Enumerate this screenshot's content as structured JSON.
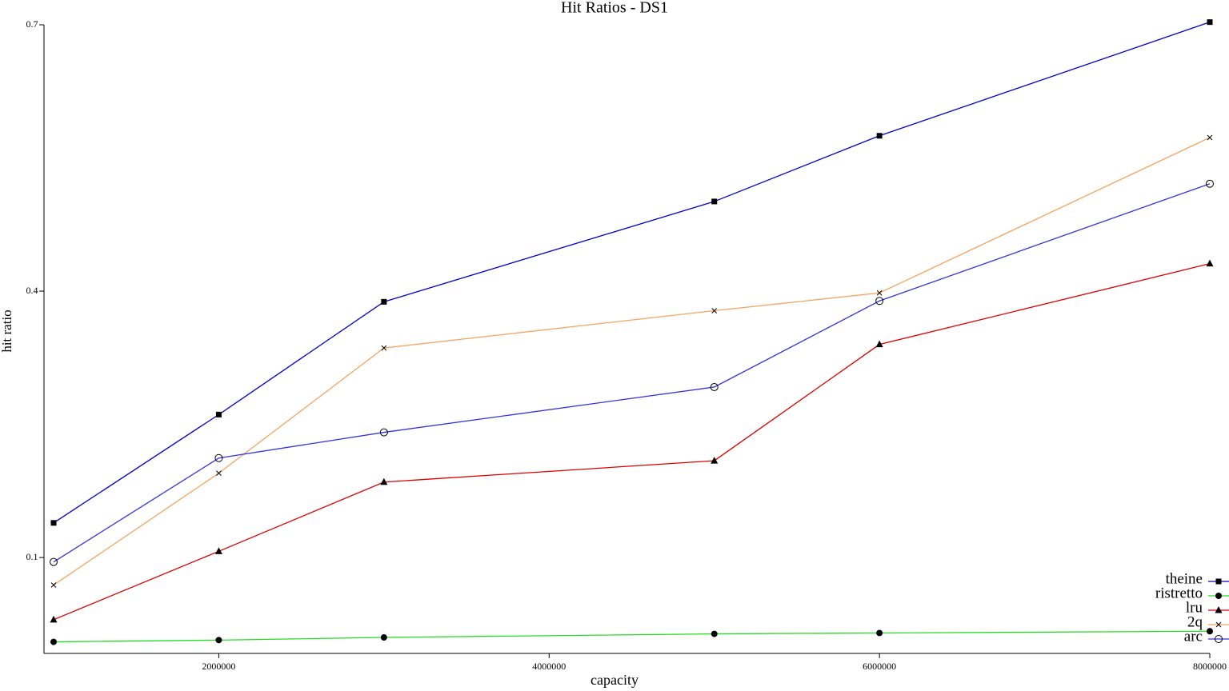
{
  "chart_data": {
    "type": "line",
    "title": "Hit Ratios - DS1",
    "x_label": "capacity",
    "y_label": "hit ratio",
    "x": [
      1000000,
      2000000,
      3000000,
      5000000,
      6000000,
      8000000
    ],
    "series": [
      {
        "name": "theine",
        "color": "#0000cc",
        "marker": "square",
        "values": [
          0.139,
          0.261,
          0.388,
          0.501,
          0.575,
          0.703
        ]
      },
      {
        "name": "ristretto",
        "color": "#22dd22",
        "marker": "circle",
        "values": [
          0.005,
          0.007,
          0.01,
          0.014,
          0.015,
          0.017
        ]
      },
      {
        "name": "lru",
        "color": "#dd0000",
        "marker": "triangle",
        "values": [
          0.03,
          0.107,
          0.185,
          0.209,
          0.34,
          0.431
        ]
      },
      {
        "name": "2q",
        "color": "#f4a460",
        "marker": "x",
        "values": [
          0.069,
          0.195,
          0.336,
          0.378,
          0.398,
          0.573
        ]
      },
      {
        "name": "arc",
        "color": "#3333dd",
        "marker": "open-circle",
        "values": [
          0.095,
          0.212,
          0.241,
          0.292,
          0.389,
          0.521
        ]
      }
    ],
    "xlim": [
      1000000,
      8000000
    ],
    "xticks": [
      2000000,
      4000000,
      6000000,
      8000000
    ],
    "ylim": [
      -0.008,
      0.7
    ],
    "yticks": [
      0.1,
      0.4,
      0.7
    ],
    "legend": "bottom-right"
  }
}
